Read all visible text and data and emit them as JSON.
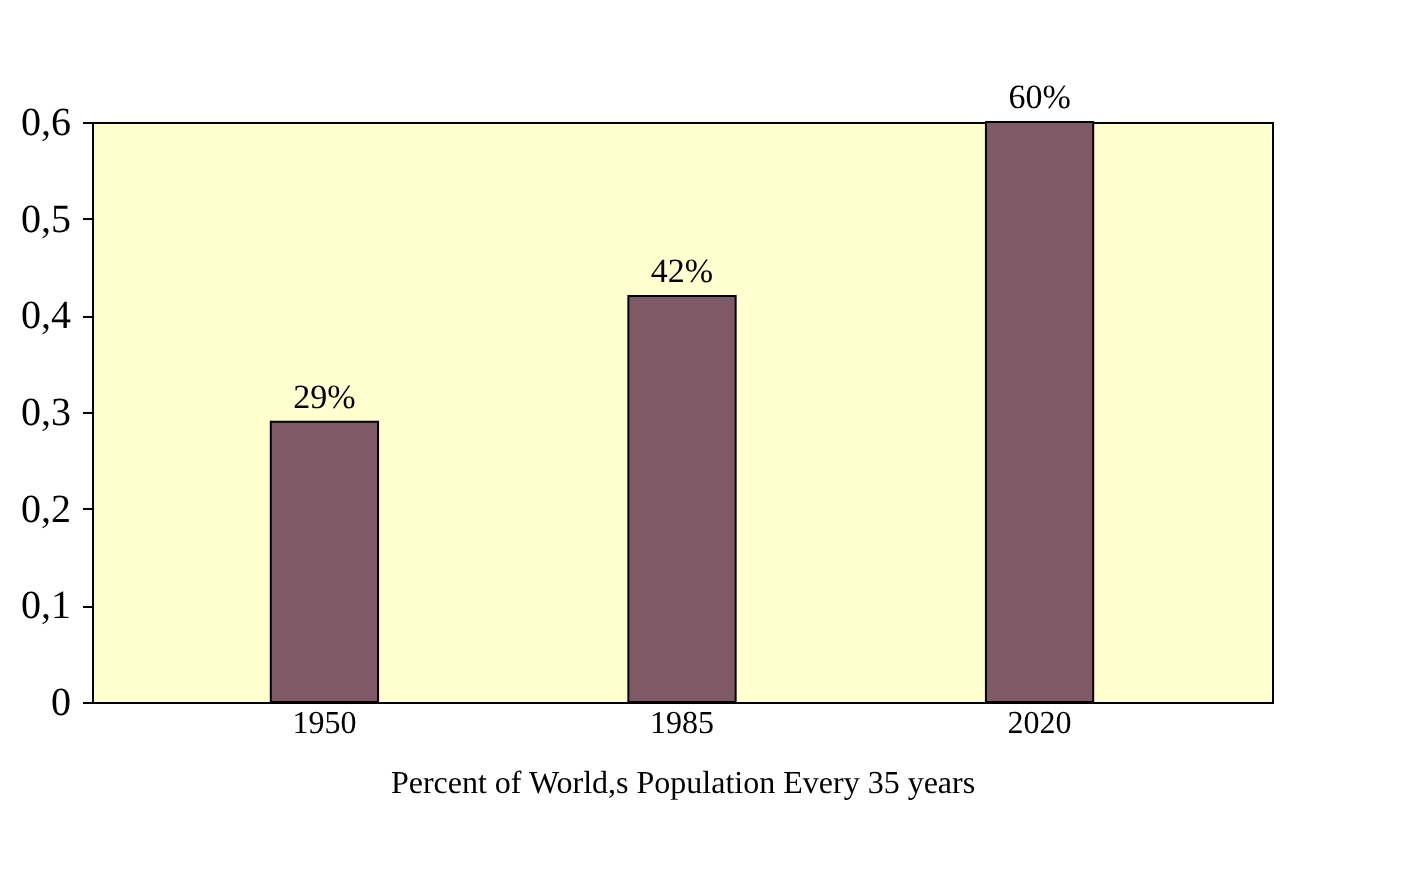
{
  "chart_data": {
    "type": "bar",
    "xlabel": "Percent of World,s Population Every 35 years",
    "categories": [
      "1950",
      "1985",
      "2020"
    ],
    "values": [
      0.29,
      0.42,
      0.6
    ],
    "value_labels": [
      "29%",
      "42%",
      "60%"
    ],
    "color": "#7f5a66",
    "ylim": [
      0,
      0.6
    ],
    "yticks": [
      0,
      {
        "value": 0.1,
        "label": "0,1"
      },
      {
        "value": 0.2,
        "label": "0,2"
      },
      {
        "value": 0.3,
        "label": "0,3"
      },
      {
        "value": 0.4,
        "label": "0,4"
      },
      {
        "value": 0.5,
        "label": "0,5"
      },
      {
        "value": 0.6,
        "label": "0,6"
      }
    ],
    "grid": false
  }
}
